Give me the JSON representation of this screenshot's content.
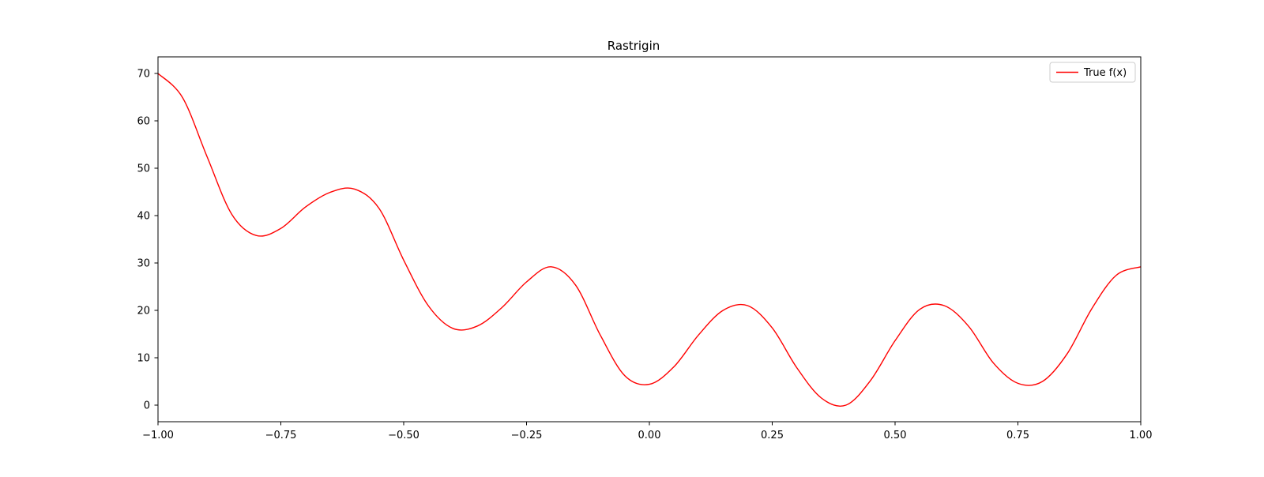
{
  "chart_data": {
    "type": "line",
    "title": "Rastrigin",
    "xlabel": "",
    "ylabel": "",
    "xlim": [
      -1.0,
      1.0
    ],
    "ylim": [
      -3.5,
      73.5
    ],
    "x_ticks": [
      -1.0,
      -0.75,
      -0.5,
      -0.25,
      0.0,
      0.25,
      0.5,
      0.75,
      1.0
    ],
    "x_tick_labels": [
      "−1.00",
      "−0.75",
      "−0.50",
      "−0.25",
      "0.00",
      "0.25",
      "0.50",
      "0.75",
      "1.00"
    ],
    "y_ticks": [
      0,
      10,
      20,
      30,
      40,
      50,
      60,
      70
    ],
    "y_tick_labels": [
      "0",
      "10",
      "20",
      "30",
      "40",
      "50",
      "60",
      "70"
    ],
    "grid": false,
    "legend_position": "top-right",
    "series": [
      {
        "name": "True f(x)",
        "color": "#ff0000",
        "x": [
          -1.0,
          -0.95,
          -0.9,
          -0.85,
          -0.8,
          -0.75,
          -0.7,
          -0.65,
          -0.6,
          -0.55,
          -0.5,
          -0.45,
          -0.4,
          -0.35,
          -0.3,
          -0.25,
          -0.2,
          -0.15,
          -0.1,
          -0.05,
          0.0,
          0.05,
          0.1,
          0.15,
          0.2,
          0.25,
          0.3,
          0.35,
          0.4,
          0.45,
          0.5,
          0.55,
          0.6,
          0.65,
          0.7,
          0.75,
          0.8,
          0.85,
          0.9,
          0.95,
          1.0
        ],
        "y": [
          70.0,
          64.9,
          52.4,
          40.3,
          35.8,
          37.3,
          41.8,
          44.9,
          45.6,
          41.5,
          30.6,
          21.0,
          16.2,
          16.7,
          20.6,
          26.0,
          29.2,
          25.3,
          14.8,
          6.2,
          4.4,
          8.1,
          14.8,
          20.0,
          21.0,
          16.3,
          7.9,
          1.5,
          0.0,
          5.2,
          13.6,
          20.2,
          21.0,
          16.6,
          8.9,
          4.6,
          5.0,
          10.8,
          20.3,
          27.4,
          29.2
        ]
      }
    ]
  }
}
